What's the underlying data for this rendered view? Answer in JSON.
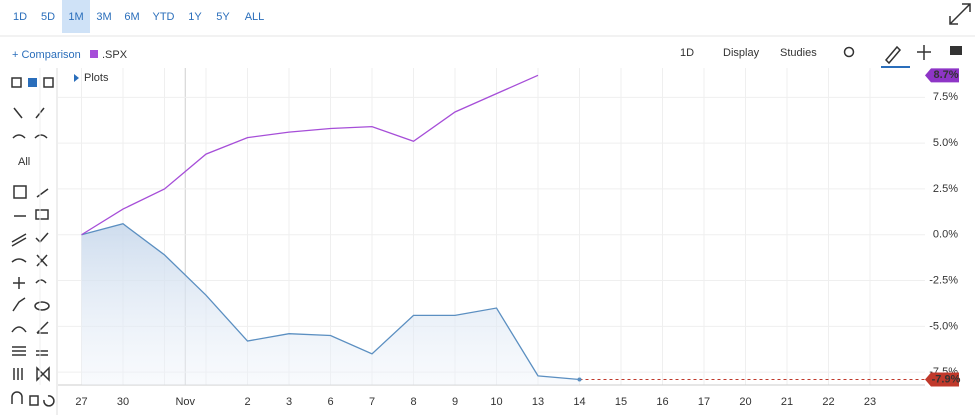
{
  "toolbar": {
    "ranges": [
      "1D",
      "5D",
      "1M",
      "3M",
      "6M",
      "YTD",
      "1Y",
      "5Y",
      "ALL"
    ],
    "active_range": "1M",
    "comparison": "+ Comparison",
    "interval": "1D",
    "display": "Display",
    "studies": "Studies",
    "plots": "Plots",
    "tool_filter": "All"
  },
  "chart_data": {
    "type": "line",
    "categories": [
      null,
      "27",
      "30",
      null,
      null,
      "2",
      "3",
      "6",
      "7",
      "8",
      "9",
      "10",
      "13",
      "14",
      "15",
      "16",
      "17",
      "20",
      "21",
      "22",
      "23"
    ],
    "month_label": "Nov",
    "series": [
      {
        "color": "#5b8fc1",
        "area": true,
        "last_label": "-7.9%",
        "label_color": "#c0392b",
        "values": [
          null,
          0,
          0.6,
          -1.1,
          -3.3,
          -5.8,
          -5.4,
          -5.5,
          -6.5,
          -4.4,
          -4.4,
          -4.0,
          -7.7,
          -7.9,
          null,
          null,
          null,
          null,
          null,
          null,
          null
        ]
      },
      {
        "name": ".SPX",
        "color": "#a64ed8",
        "last_label": "8.7%",
        "label_color": "#8e35c6",
        "values": [
          null,
          0,
          1.4,
          2.5,
          4.4,
          5.3,
          5.6,
          5.8,
          5.9,
          5.1,
          6.7,
          7.7,
          8.7,
          null,
          null,
          null,
          null,
          null,
          null,
          null,
          null
        ]
      }
    ],
    "ylim": [
      -8.2,
      9.1
    ],
    "yticks": [
      {
        "value": -7.5,
        "label": "-7.5%"
      },
      {
        "value": -5,
        "label": "-5.0%"
      },
      {
        "value": -2.5,
        "label": "-2.5%"
      },
      {
        "value": 0,
        "label": "0.0%"
      },
      {
        "value": 2.5,
        "label": "2.5%"
      },
      {
        "value": 5,
        "label": "5.0%"
      },
      {
        "value": 7.5,
        "label": "7.5%"
      }
    ],
    "grid": true
  }
}
